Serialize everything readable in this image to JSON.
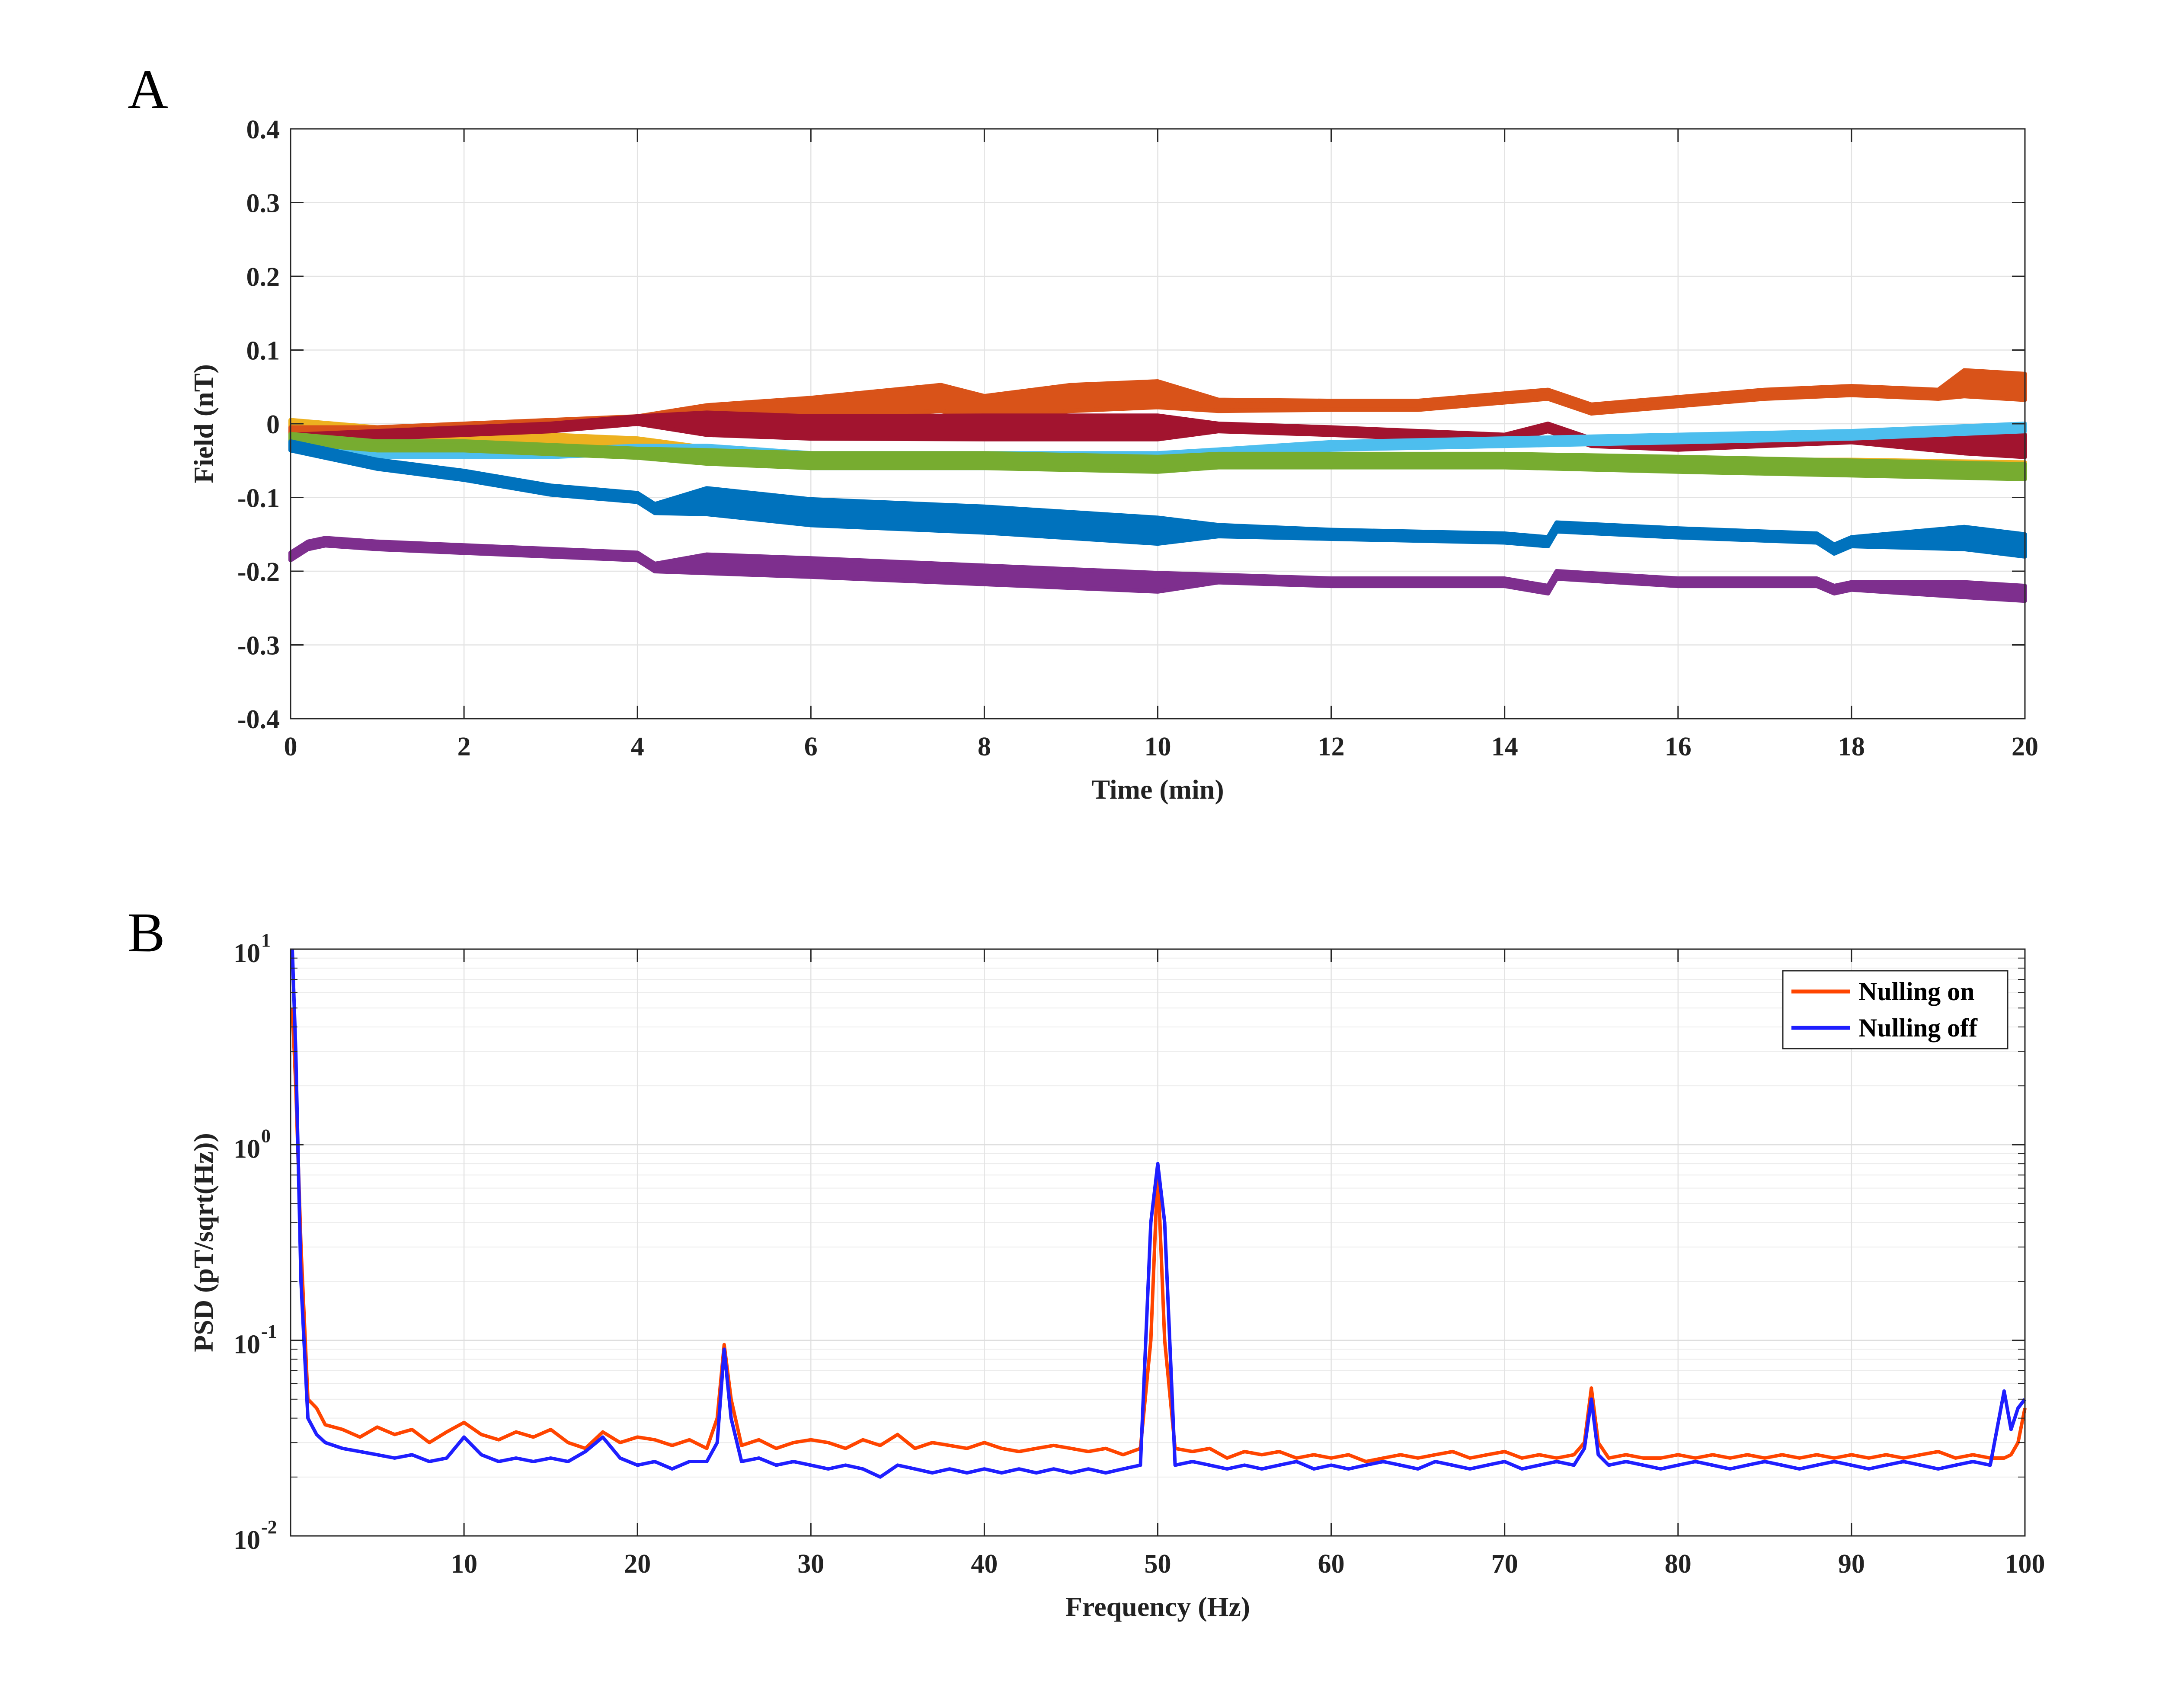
{
  "chart_data": [
    {
      "panel_label": "A",
      "type": "line",
      "title": "",
      "xlabel": "Time (min)",
      "ylabel": "Field (nT)",
      "xlim": [
        0,
        20
      ],
      "ylim": [
        -0.4,
        0.4
      ],
      "xticks": [
        "0",
        "2",
        "4",
        "6",
        "8",
        "10",
        "12",
        "14",
        "16",
        "18",
        "20"
      ],
      "yticks": [
        "0.4",
        "0.3",
        "0.2",
        "0.1",
        "0",
        "-0.1",
        "-0.2",
        "-0.3",
        "-0.4"
      ],
      "grid": true,
      "legend": "none",
      "series": [
        {
          "color": "#EDB120",
          "x": [
            0,
            1,
            2,
            3,
            4,
            4.8,
            6,
            8,
            10,
            10.7,
            12,
            14,
            16,
            18,
            20
          ],
          "y": [
            0.0,
            -0.01,
            -0.015,
            -0.02,
            -0.025,
            -0.04,
            -0.05,
            -0.05,
            -0.055,
            -0.05,
            -0.05,
            -0.05,
            -0.055,
            -0.055,
            -0.06
          ],
          "band": [
            0.01,
            0.01,
            0.01,
            0.01,
            0.01,
            0.015,
            0.015,
            0.015,
            0.015,
            0.012,
            0.012,
            0.012,
            0.012,
            0.012,
            0.015
          ]
        },
        {
          "color": "#D95319",
          "x": [
            0,
            1,
            2,
            3,
            4,
            4.8,
            6,
            7.5,
            8,
            9,
            10,
            10.7,
            12,
            13,
            14.5,
            15,
            16,
            17,
            18,
            19,
            19.3,
            20
          ],
          "y": [
            -0.01,
            -0.01,
            -0.005,
            0.0,
            0.005,
            0.01,
            0.02,
            0.035,
            0.02,
            0.035,
            0.04,
            0.025,
            0.025,
            0.025,
            0.04,
            0.02,
            0.03,
            0.04,
            0.045,
            0.04,
            0.055,
            0.05
          ],
          "band": [
            0.01,
            0.01,
            0.01,
            0.01,
            0.01,
            0.03,
            0.03,
            0.035,
            0.035,
            0.035,
            0.035,
            0.015,
            0.012,
            0.012,
            0.012,
            0.012,
            0.012,
            0.012,
            0.012,
            0.012,
            0.035,
            0.035
          ]
        },
        {
          "color": "#A2142F",
          "x": [
            0,
            1,
            2,
            3,
            4,
            4.8,
            6,
            8,
            10,
            10.7,
            12,
            14,
            14.5,
            15,
            16,
            18,
            19.3,
            20
          ],
          "y": [
            -0.02,
            -0.015,
            -0.01,
            -0.005,
            0.005,
            0.0,
            -0.005,
            -0.005,
            -0.005,
            -0.005,
            -0.01,
            -0.02,
            -0.005,
            -0.025,
            -0.03,
            -0.02,
            -0.025,
            -0.03
          ],
          "band": [
            0.01,
            0.01,
            0.01,
            0.01,
            0.01,
            0.03,
            0.03,
            0.032,
            0.032,
            0.01,
            0.01,
            0.01,
            0.01,
            0.01,
            0.01,
            0.01,
            0.03,
            0.03
          ]
        },
        {
          "color": "#4DBEEE",
          "x": [
            0,
            1,
            2,
            3,
            4,
            4.8,
            6,
            8,
            10,
            10.7,
            12,
            14,
            16,
            18,
            20
          ],
          "y": [
            -0.03,
            -0.04,
            -0.04,
            -0.04,
            -0.035,
            -0.04,
            -0.05,
            -0.05,
            -0.05,
            -0.04,
            -0.03,
            -0.025,
            -0.02,
            -0.015,
            -0.005
          ],
          "band": [
            0.01,
            0.01,
            0.01,
            0.01,
            0.01,
            0.02,
            0.02,
            0.02,
            0.02,
            0.01,
            0.01,
            0.01,
            0.01,
            0.01,
            0.01
          ]
        },
        {
          "color": "#77AC30",
          "x": [
            0,
            1,
            2,
            3,
            4,
            4.8,
            6,
            8,
            10,
            10.7,
            12,
            14,
            16,
            18,
            20
          ],
          "y": [
            -0.02,
            -0.03,
            -0.03,
            -0.035,
            -0.04,
            -0.045,
            -0.05,
            -0.05,
            -0.055,
            -0.05,
            -0.05,
            -0.05,
            -0.055,
            -0.06,
            -0.065
          ],
          "band": [
            0.012,
            0.012,
            0.012,
            0.012,
            0.012,
            0.018,
            0.02,
            0.02,
            0.02,
            0.018,
            0.018,
            0.018,
            0.02,
            0.02,
            0.02
          ]
        },
        {
          "color": "#0072BD",
          "x": [
            0,
            1,
            2,
            3,
            4,
            4.2,
            4.8,
            6,
            8,
            10,
            10.7,
            12,
            14,
            14.5,
            14.6,
            16,
            17.6,
            17.8,
            18,
            19.3,
            20
          ],
          "y": [
            -0.03,
            -0.055,
            -0.07,
            -0.09,
            -0.1,
            -0.115,
            -0.105,
            -0.12,
            -0.13,
            -0.145,
            -0.145,
            -0.15,
            -0.155,
            -0.16,
            -0.14,
            -0.148,
            -0.155,
            -0.17,
            -0.16,
            -0.155,
            -0.165
          ],
          "band": [
            0.012,
            0.012,
            0.012,
            0.012,
            0.012,
            0.012,
            0.035,
            0.035,
            0.035,
            0.035,
            0.015,
            0.012,
            0.012,
            0.012,
            0.012,
            0.012,
            0.012,
            0.012,
            0.012,
            0.03,
            0.03
          ]
        },
        {
          "color": "#7E2F8E",
          "x": [
            0,
            0.2,
            0.4,
            1,
            2,
            3,
            4,
            4.2,
            4.8,
            6,
            8,
            10,
            10.7,
            12,
            14,
            14.5,
            14.6,
            16,
            17.6,
            17.8,
            18,
            19.3,
            20
          ],
          "y": [
            -0.18,
            -0.165,
            -0.16,
            -0.165,
            -0.17,
            -0.175,
            -0.18,
            -0.195,
            -0.19,
            -0.195,
            -0.205,
            -0.215,
            -0.21,
            -0.215,
            -0.215,
            -0.225,
            -0.205,
            -0.215,
            -0.215,
            -0.225,
            -0.22,
            -0.225,
            -0.23
          ],
          "band": [
            0.01,
            0.01,
            0.01,
            0.01,
            0.01,
            0.01,
            0.01,
            0.01,
            0.025,
            0.025,
            0.025,
            0.025,
            0.01,
            0.01,
            0.01,
            0.01,
            0.01,
            0.01,
            0.01,
            0.01,
            0.01,
            0.02,
            0.02
          ]
        }
      ]
    },
    {
      "panel_label": "B",
      "type": "line",
      "title": "",
      "xlabel": "Frequency (Hz)",
      "ylabel": "PSD (pT/sqrt(Hz))",
      "xlim": [
        0,
        100
      ],
      "ylim": [
        0.01,
        10
      ],
      "yscale": "log",
      "xticks": [
        "10",
        "20",
        "30",
        "40",
        "50",
        "60",
        "70",
        "80",
        "90",
        "100"
      ],
      "ytick_bases": [
        "10",
        "10",
        "10",
        "10"
      ],
      "ytick_exponents": [
        "1",
        "0",
        "-1",
        "-2"
      ],
      "grid": true,
      "legend": "top-right",
      "series": [
        {
          "name": "Nulling on",
          "color": "#FF4500",
          "x": [
            0.1,
            0.3,
            0.6,
            1,
            1.5,
            2,
            3,
            4,
            5,
            6,
            7,
            8,
            9,
            10,
            11,
            12,
            13,
            14,
            15,
            16,
            17,
            18,
            19,
            20,
            21,
            22,
            23,
            24,
            24.6,
            25,
            25.4,
            26,
            27,
            28,
            29,
            30,
            31,
            32,
            33,
            34,
            35,
            36,
            37,
            38,
            39,
            40,
            41,
            42,
            43,
            44,
            45,
            46,
            47,
            48,
            49,
            49.6,
            50,
            50.4,
            51,
            52,
            53,
            54,
            55,
            56,
            57,
            58,
            59,
            60,
            61,
            62,
            63,
            64,
            65,
            66,
            67,
            68,
            69,
            70,
            71,
            72,
            73,
            74,
            74.6,
            75,
            75.4,
            76,
            77,
            78,
            79,
            80,
            81,
            82,
            83,
            84,
            85,
            86,
            87,
            88,
            89,
            90,
            91,
            92,
            93,
            94,
            95,
            96,
            97,
            98,
            98.8,
            99.2,
            99.6,
            100
          ],
          "y": [
            5.0,
            2.0,
            0.3,
            0.05,
            0.045,
            0.037,
            0.035,
            0.032,
            0.036,
            0.033,
            0.035,
            0.03,
            0.034,
            0.038,
            0.033,
            0.031,
            0.034,
            0.032,
            0.035,
            0.03,
            0.028,
            0.034,
            0.03,
            0.032,
            0.031,
            0.029,
            0.031,
            0.028,
            0.04,
            0.095,
            0.05,
            0.029,
            0.031,
            0.028,
            0.03,
            0.031,
            0.03,
            0.028,
            0.031,
            0.029,
            0.033,
            0.028,
            0.03,
            0.029,
            0.028,
            0.03,
            0.028,
            0.027,
            0.028,
            0.029,
            0.028,
            0.027,
            0.028,
            0.026,
            0.028,
            0.1,
            0.75,
            0.1,
            0.028,
            0.027,
            0.028,
            0.025,
            0.027,
            0.026,
            0.027,
            0.025,
            0.026,
            0.025,
            0.026,
            0.024,
            0.025,
            0.026,
            0.025,
            0.026,
            0.027,
            0.025,
            0.026,
            0.027,
            0.025,
            0.026,
            0.025,
            0.026,
            0.03,
            0.057,
            0.03,
            0.025,
            0.026,
            0.025,
            0.025,
            0.026,
            0.025,
            0.026,
            0.025,
            0.026,
            0.025,
            0.026,
            0.025,
            0.026,
            0.025,
            0.026,
            0.025,
            0.026,
            0.025,
            0.026,
            0.027,
            0.025,
            0.026,
            0.025,
            0.025,
            0.026,
            0.03,
            0.045
          ]
        },
        {
          "name": "Nulling off",
          "color": "#1F1FFF",
          "x": [
            0.1,
            0.3,
            0.6,
            1,
            1.5,
            2,
            3,
            4,
            5,
            6,
            7,
            8,
            9,
            10,
            11,
            12,
            13,
            14,
            15,
            16,
            17,
            18,
            19,
            20,
            21,
            22,
            23,
            24,
            24.6,
            25,
            25.4,
            26,
            27,
            28,
            29,
            30,
            31,
            32,
            33,
            34,
            35,
            36,
            37,
            38,
            39,
            40,
            41,
            42,
            43,
            44,
            45,
            46,
            47,
            48,
            49,
            49.6,
            50,
            50.4,
            51,
            52,
            53,
            54,
            55,
            56,
            57,
            58,
            59,
            60,
            61,
            62,
            63,
            64,
            65,
            66,
            67,
            68,
            69,
            70,
            71,
            72,
            73,
            74,
            74.6,
            75,
            75.4,
            76,
            77,
            78,
            79,
            80,
            81,
            82,
            83,
            84,
            85,
            86,
            87,
            88,
            89,
            90,
            91,
            92,
            93,
            94,
            95,
            96,
            97,
            98,
            98.8,
            99.2,
            99.6,
            100
          ],
          "y": [
            10.0,
            3.0,
            0.2,
            0.04,
            0.033,
            0.03,
            0.028,
            0.027,
            0.026,
            0.025,
            0.026,
            0.024,
            0.025,
            0.032,
            0.026,
            0.024,
            0.025,
            0.024,
            0.025,
            0.024,
            0.027,
            0.032,
            0.025,
            0.023,
            0.024,
            0.022,
            0.024,
            0.024,
            0.03,
            0.09,
            0.04,
            0.024,
            0.025,
            0.023,
            0.024,
            0.023,
            0.022,
            0.023,
            0.022,
            0.02,
            0.023,
            0.022,
            0.021,
            0.022,
            0.021,
            0.022,
            0.021,
            0.022,
            0.021,
            0.022,
            0.021,
            0.022,
            0.021,
            0.022,
            0.023,
            0.4,
            0.8,
            0.4,
            0.023,
            0.024,
            0.023,
            0.022,
            0.023,
            0.022,
            0.023,
            0.024,
            0.022,
            0.023,
            0.022,
            0.023,
            0.024,
            0.023,
            0.022,
            0.024,
            0.023,
            0.022,
            0.023,
            0.024,
            0.022,
            0.023,
            0.024,
            0.023,
            0.028,
            0.05,
            0.026,
            0.023,
            0.024,
            0.023,
            0.022,
            0.023,
            0.024,
            0.023,
            0.022,
            0.023,
            0.024,
            0.023,
            0.022,
            0.023,
            0.024,
            0.023,
            0.022,
            0.023,
            0.024,
            0.023,
            0.022,
            0.023,
            0.024,
            0.023,
            0.055,
            0.035,
            0.045,
            0.05
          ]
        }
      ]
    }
  ]
}
